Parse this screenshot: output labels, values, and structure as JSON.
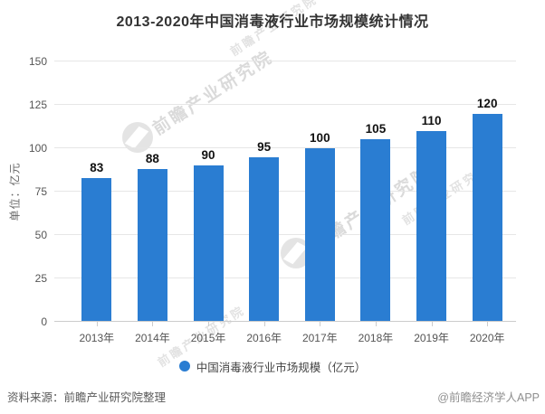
{
  "title": "2013-2020年中国消毒液行业市场规模统计情况",
  "chart_data": {
    "type": "bar",
    "title": "2013-2020年中国消毒液行业市场规模统计情况",
    "categories": [
      "2013年",
      "2014年",
      "2015年",
      "2016年",
      "2017年",
      "2018年",
      "2019年",
      "2020年"
    ],
    "values": [
      83,
      88,
      90,
      95,
      100,
      105,
      110,
      120
    ],
    "series": [
      {
        "name": "中国消毒液行业市场规模（亿元）",
        "values": [
          83,
          88,
          90,
          95,
          100,
          105,
          110,
          120
        ]
      }
    ],
    "xlabel": "",
    "ylabel": "单位：亿元",
    "ylim": [
      0,
      150
    ],
    "yticks": [
      0,
      25,
      50,
      75,
      100,
      125,
      150
    ],
    "grid": true,
    "data_labels": true,
    "legend_position": "bottom",
    "colors": {
      "bar": "#2a7dd2",
      "value_label": "#111111",
      "axis_text": "#555555",
      "gridline": "#e6e6e6",
      "axis_line": "#cccccc",
      "title": "#333333"
    }
  },
  "legend": {
    "marker_color": "#2a7dd2",
    "label": "中国消毒液行业市场规模（亿元）"
  },
  "watermark": {
    "text": "前瞻产业研究院"
  },
  "footer": {
    "source": "资料来源：前瞻产业研究院整理",
    "credit": "@前瞻经济学人APP"
  }
}
